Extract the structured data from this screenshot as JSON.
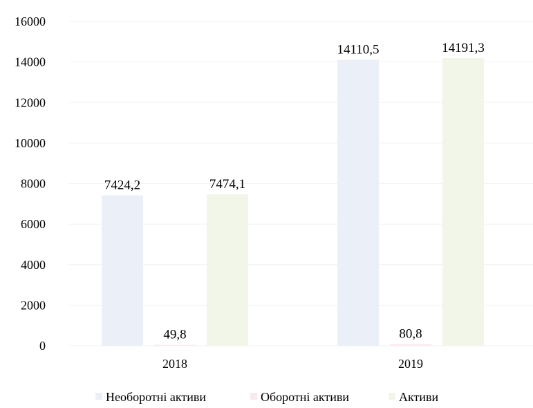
{
  "chart_data": {
    "type": "bar",
    "categories": [
      "2018",
      "2019"
    ],
    "series": [
      {
        "name": "Необоротні активи",
        "values": [
          7424.2,
          14110.5
        ],
        "labels": [
          "7424,2",
          "14110,5"
        ],
        "color": "#ebf0f8"
      },
      {
        "name": "Оборотні активи",
        "values": [
          49.8,
          80.8
        ],
        "labels": [
          "49,8",
          "80,8"
        ],
        "color": "#f7ebed"
      },
      {
        "name": "Активи",
        "values": [
          7474.1,
          14191.3
        ],
        "labels": [
          "7474,1",
          "14191,3"
        ],
        "color": "#f2f6e8"
      }
    ],
    "ylim": [
      0,
      16000
    ],
    "yticks": [
      0,
      2000,
      4000,
      6000,
      8000,
      10000,
      12000,
      14000,
      16000
    ],
    "grid": true,
    "legend_position": "bottom"
  }
}
